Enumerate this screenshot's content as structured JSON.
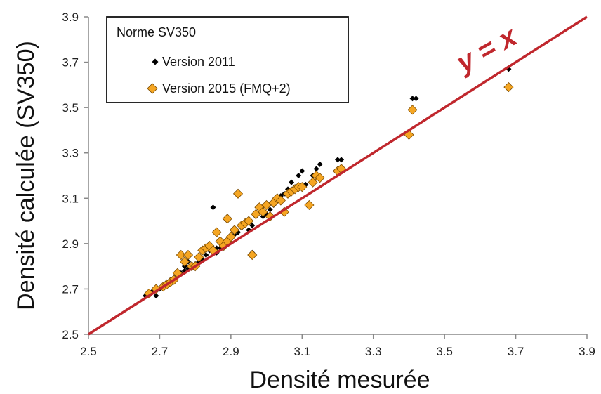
{
  "chart_data": {
    "type": "scatter",
    "xlabel": "Densité mesurée",
    "ylabel": "Densité calculée (SV350)",
    "xlim": [
      2.5,
      3.9
    ],
    "ylim": [
      2.5,
      3.9
    ],
    "xticks": [
      "2.5",
      "2.7",
      "2.9",
      "3.1",
      "3.3",
      "3.5",
      "3.7",
      "3.9"
    ],
    "yticks": [
      "2.5",
      "2.7",
      "2.9",
      "3.1",
      "3.3",
      "3.5",
      "3.7",
      "3.9"
    ],
    "grid": false,
    "legend": {
      "title": "Norme SV350",
      "placement": "top-left"
    },
    "reference_line": {
      "label": "y = x",
      "color": "#c0272d",
      "points": [
        [
          2.5,
          2.5
        ],
        [
          3.9,
          3.9
        ]
      ]
    },
    "series": [
      {
        "name": "Version 2011",
        "marker": "diamond",
        "color": "#000000",
        "points": [
          [
            2.66,
            2.67
          ],
          [
            2.67,
            2.68
          ],
          [
            2.68,
            2.69
          ],
          [
            2.69,
            2.67
          ],
          [
            2.7,
            2.7
          ],
          [
            2.71,
            2.71
          ],
          [
            2.72,
            2.73
          ],
          [
            2.73,
            2.74
          ],
          [
            2.74,
            2.75
          ],
          [
            2.75,
            2.76
          ],
          [
            2.76,
            2.77
          ],
          [
            2.77,
            2.78
          ],
          [
            2.77,
            2.8
          ],
          [
            2.78,
            2.82
          ],
          [
            2.78,
            2.79
          ],
          [
            2.79,
            2.8
          ],
          [
            2.8,
            2.81
          ],
          [
            2.81,
            2.82
          ],
          [
            2.82,
            2.83
          ],
          [
            2.83,
            2.85
          ],
          [
            2.84,
            2.87
          ],
          [
            2.85,
            2.88
          ],
          [
            2.85,
            3.06
          ],
          [
            2.86,
            2.86
          ],
          [
            2.86,
            2.88
          ],
          [
            2.87,
            2.88
          ],
          [
            2.88,
            2.89
          ],
          [
            2.89,
            2.91
          ],
          [
            2.9,
            2.92
          ],
          [
            2.91,
            2.94
          ],
          [
            2.92,
            2.95
          ],
          [
            2.93,
            2.97
          ],
          [
            2.94,
            2.99
          ],
          [
            2.95,
            2.96
          ],
          [
            2.96,
            2.98
          ],
          [
            2.96,
            2.86
          ],
          [
            2.97,
            3.02
          ],
          [
            2.98,
            3.04
          ],
          [
            2.99,
            3.02
          ],
          [
            3.0,
            3.03
          ],
          [
            3.01,
            3.05
          ],
          [
            3.02,
            3.07
          ],
          [
            3.03,
            3.09
          ],
          [
            3.04,
            3.11
          ],
          [
            3.05,
            3.12
          ],
          [
            3.06,
            3.14
          ],
          [
            3.07,
            3.17
          ],
          [
            3.08,
            3.15
          ],
          [
            3.09,
            3.2
          ],
          [
            3.1,
            3.22
          ],
          [
            3.11,
            3.16
          ],
          [
            3.12,
            3.07
          ],
          [
            3.13,
            3.2
          ],
          [
            3.14,
            3.23
          ],
          [
            3.15,
            3.25
          ],
          [
            3.2,
            3.27
          ],
          [
            3.21,
            3.27
          ],
          [
            3.41,
            3.54
          ],
          [
            3.42,
            3.54
          ],
          [
            3.68,
            3.67
          ]
        ]
      },
      {
        "name": "Version 2015 (FMQ+2)",
        "marker": "diamond",
        "color": "#f5a623",
        "points": [
          [
            2.67,
            2.68
          ],
          [
            2.69,
            2.7
          ],
          [
            2.71,
            2.71
          ],
          [
            2.72,
            2.72
          ],
          [
            2.73,
            2.73
          ],
          [
            2.74,
            2.74
          ],
          [
            2.75,
            2.77
          ],
          [
            2.76,
            2.85
          ],
          [
            2.77,
            2.82
          ],
          [
            2.78,
            2.85
          ],
          [
            2.79,
            2.8
          ],
          [
            2.8,
            2.8
          ],
          [
            2.81,
            2.84
          ],
          [
            2.82,
            2.87
          ],
          [
            2.83,
            2.88
          ],
          [
            2.84,
            2.89
          ],
          [
            2.85,
            2.87
          ],
          [
            2.86,
            2.95
          ],
          [
            2.87,
            2.91
          ],
          [
            2.88,
            2.89
          ],
          [
            2.89,
            2.91
          ],
          [
            2.9,
            2.93
          ],
          [
            2.89,
            3.01
          ],
          [
            2.91,
            2.96
          ],
          [
            2.92,
            3.12
          ],
          [
            2.93,
            2.98
          ],
          [
            2.94,
            2.99
          ],
          [
            2.95,
            3.0
          ],
          [
            2.96,
            2.85
          ],
          [
            2.97,
            3.03
          ],
          [
            2.98,
            3.06
          ],
          [
            2.99,
            3.04
          ],
          [
            3.0,
            3.07
          ],
          [
            3.01,
            3.02
          ],
          [
            3.02,
            3.08
          ],
          [
            3.03,
            3.1
          ],
          [
            3.04,
            3.09
          ],
          [
            3.05,
            3.04
          ],
          [
            3.06,
            3.12
          ],
          [
            3.07,
            3.13
          ],
          [
            3.08,
            3.14
          ],
          [
            3.09,
            3.15
          ],
          [
            3.1,
            3.15
          ],
          [
            3.12,
            3.07
          ],
          [
            3.13,
            3.17
          ],
          [
            3.14,
            3.2
          ],
          [
            3.15,
            3.19
          ],
          [
            3.2,
            3.22
          ],
          [
            3.21,
            3.23
          ],
          [
            3.4,
            3.38
          ],
          [
            3.41,
            3.49
          ],
          [
            3.68,
            3.59
          ]
        ]
      }
    ]
  }
}
